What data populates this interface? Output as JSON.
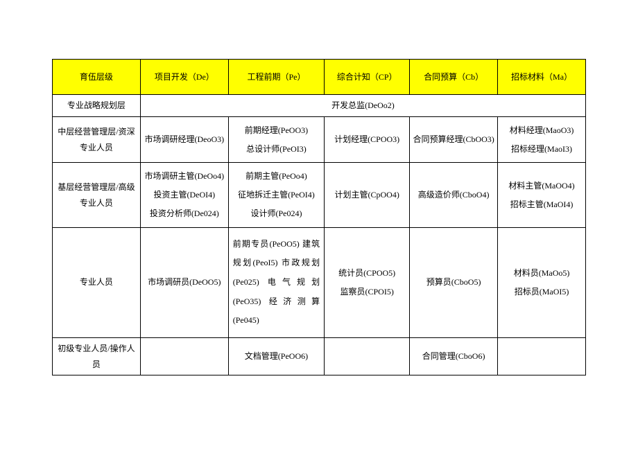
{
  "table": {
    "type": "table",
    "header_bg": "#ffff00",
    "border_color": "#000000",
    "font_size_pt": 9,
    "columns": [
      "育伍层级",
      "项目开发（De）",
      "工程前期（Pe）",
      "综合计知（CP）",
      "合同预算（Cb）",
      "招标材料（Ma）"
    ],
    "rows": {
      "r1": {
        "c0": "专业战略规划层",
        "merged": "开发总监(DeOo2)"
      },
      "r2": {
        "c0": "中层经营管理层/资深专业人员",
        "c1": "市场调研经理(DeoO3)",
        "c2a": "前期经理(PeOO3)",
        "c2b": "总设计师(PeOI3)",
        "c3": "计划经理(CPOO3)",
        "c4": "合同预算经理(CbOO3)",
        "c5a": "材料经理(MaoO3)",
        "c5b": "招标经理(MaoI3)"
      },
      "r3": {
        "c0": "基层经营管理层/高级专业人员",
        "c1a": "市场调研主管(DeOo4)",
        "c1b": "投资主管(DeOI4)",
        "c1c": "投资分析师(De024)",
        "c2a": "前期主管(PeOo4)",
        "c2b": "征地拆迁主管(PeOI4)",
        "c2c": "设计师(Pe024)",
        "c3": "计划主管(CpOO4)",
        "c4": "高级造价师(CboO4)",
        "c5a": "材料主管(MaOO4)",
        "c5b": "招标主管(MaOI4)"
      },
      "r4": {
        "c0": "专业人员",
        "c1": "市场调研员(DeOO5)",
        "c2": "前期专员(PeOO5) 建筑规划(PeoI5) 市政规划 (Pe025) 电气规划(PeO35) 经济测算(Pe045)",
        "c3a": "统计员(CPOO5)",
        "c3b": "监察员(CPOI5)",
        "c4": "预算员(CboO5)",
        "c5a": "材料员(MaOo5)",
        "c5b": "招标员(MaOI5)"
      },
      "r5": {
        "c0": "初级专业人员/操作人员",
        "c1": "",
        "c2": "文档管理(PeOO6)",
        "c3": "",
        "c4": "合同管理(CboO6)",
        "c5": ""
      }
    }
  }
}
